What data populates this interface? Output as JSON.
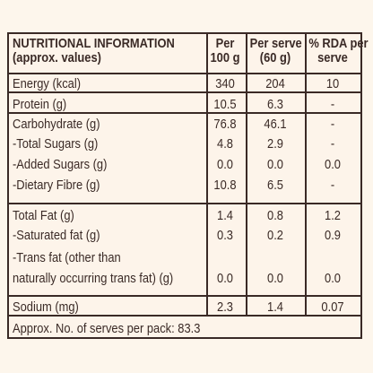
{
  "header": {
    "title": "NUTRITIONAL INFORMATION",
    "subtitle": "(approx. values)",
    "col1": [
      "Per",
      "100 g"
    ],
    "col2": [
      "Per serve",
      "(60 g)"
    ],
    "col3": [
      "% RDA per",
      "serve"
    ]
  },
  "rows": [
    {
      "label": "Energy (kcal)",
      "per100": "340",
      "perServe": "204",
      "rda": "10"
    },
    {
      "label": "Protein (g)",
      "per100": "10.5",
      "perServe": "6.3",
      "rda": "-"
    },
    {
      "label": "Carbohydrate (g)",
      "per100": "76.8",
      "perServe": "46.1",
      "rda": "-"
    },
    {
      "label": "-Total Sugars (g)",
      "per100": "4.8",
      "perServe": "2.9",
      "rda": "-"
    },
    {
      "label": "-Added Sugars (g)",
      "per100": "0.0",
      "perServe": "0.0",
      "rda": "0.0"
    },
    {
      "label": "-Dietary Fibre (g)",
      "per100": "10.8",
      "perServe": "6.5",
      "rda": "-"
    },
    {
      "label": "Total Fat (g)",
      "per100": "1.4",
      "perServe": "0.8",
      "rda": "1.2"
    },
    {
      "label": "-Saturated fat  (g)",
      "per100": "0.3",
      "perServe": "0.2",
      "rda": "0.9"
    },
    {
      "label": "-Trans fat (other than",
      "per100": "",
      "perServe": "",
      "rda": ""
    },
    {
      "label": "naturally occurring trans fat) (g)",
      "per100": "0.0",
      "perServe": "0.0",
      "rda": "0.0"
    },
    {
      "label": "Sodium (mg)",
      "per100": "2.3",
      "perServe": "1.4",
      "rda": "0.07"
    }
  ],
  "footer": "Approx. No. of serves per pack: 83.3"
}
